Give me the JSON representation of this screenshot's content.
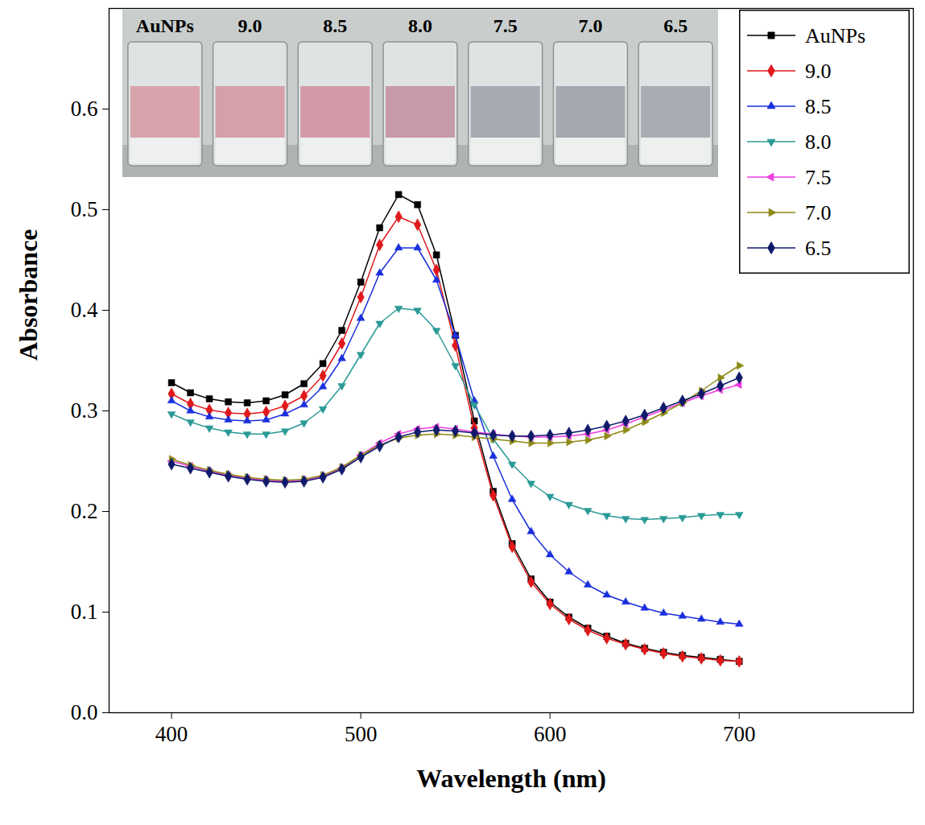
{
  "chart_data": {
    "type": "line",
    "x_label": "Wavelength (nm)",
    "y_label": "Absorbance",
    "x": [
      400,
      410,
      420,
      430,
      440,
      450,
      460,
      470,
      480,
      490,
      500,
      510,
      520,
      530,
      540,
      550,
      560,
      570,
      580,
      590,
      600,
      610,
      620,
      630,
      640,
      650,
      660,
      670,
      680,
      690,
      700
    ],
    "series": [
      {
        "name": "AuNPs",
        "color": "#000000",
        "marker": "square",
        "line_style": "solid",
        "values": [
          0.328,
          0.318,
          0.312,
          0.309,
          0.308,
          0.31,
          0.316,
          0.327,
          0.347,
          0.38,
          0.428,
          0.482,
          0.515,
          0.505,
          0.455,
          0.375,
          0.29,
          0.22,
          0.168,
          0.133,
          0.11,
          0.095,
          0.084,
          0.076,
          0.069,
          0.064,
          0.06,
          0.057,
          0.055,
          0.053,
          0.051
        ]
      },
      {
        "name": "9.0",
        "color": "#e0191b",
        "marker": "diamond",
        "line_style": "solid",
        "values": [
          0.317,
          0.307,
          0.301,
          0.298,
          0.297,
          0.299,
          0.305,
          0.315,
          0.335,
          0.367,
          0.413,
          0.465,
          0.493,
          0.485,
          0.44,
          0.365,
          0.283,
          0.216,
          0.165,
          0.13,
          0.108,
          0.093,
          0.082,
          0.074,
          0.068,
          0.063,
          0.059,
          0.056,
          0.054,
          0.052,
          0.051
        ]
      },
      {
        "name": "8.5",
        "color": "#1a2fdc",
        "marker": "triangle",
        "line_style": "solid",
        "values": [
          0.31,
          0.3,
          0.294,
          0.291,
          0.29,
          0.291,
          0.297,
          0.306,
          0.324,
          0.352,
          0.392,
          0.437,
          0.462,
          0.462,
          0.43,
          0.375,
          0.31,
          0.255,
          0.212,
          0.18,
          0.157,
          0.14,
          0.127,
          0.117,
          0.11,
          0.104,
          0.099,
          0.096,
          0.093,
          0.09,
          0.088
        ]
      },
      {
        "name": "8.0",
        "color": "#2a9a96",
        "marker": "triangle-down",
        "line_style": "solid",
        "values": [
          0.297,
          0.289,
          0.283,
          0.279,
          0.277,
          0.277,
          0.28,
          0.288,
          0.302,
          0.325,
          0.356,
          0.387,
          0.402,
          0.4,
          0.38,
          0.345,
          0.306,
          0.272,
          0.247,
          0.228,
          0.215,
          0.207,
          0.201,
          0.196,
          0.193,
          0.192,
          0.193,
          0.194,
          0.196,
          0.197,
          0.197
        ]
      },
      {
        "name": "7.5",
        "color": "#f03ce0",
        "marker": "triangle-left",
        "line_style": "solid",
        "values": [
          0.25,
          0.245,
          0.24,
          0.236,
          0.233,
          0.231,
          0.23,
          0.231,
          0.235,
          0.243,
          0.256,
          0.268,
          0.277,
          0.282,
          0.284,
          0.282,
          0.279,
          0.277,
          0.275,
          0.274,
          0.274,
          0.275,
          0.277,
          0.281,
          0.287,
          0.294,
          0.301,
          0.308,
          0.315,
          0.321,
          0.326
        ]
      },
      {
        "name": "7.0",
        "color": "#8e8a16",
        "marker": "triangle-right",
        "line_style": "solid",
        "values": [
          0.252,
          0.246,
          0.241,
          0.237,
          0.234,
          0.232,
          0.231,
          0.232,
          0.236,
          0.244,
          0.256,
          0.266,
          0.273,
          0.276,
          0.277,
          0.276,
          0.274,
          0.272,
          0.27,
          0.268,
          0.268,
          0.269,
          0.271,
          0.275,
          0.281,
          0.289,
          0.298,
          0.308,
          0.32,
          0.333,
          0.345
        ]
      },
      {
        "name": "6.5",
        "color": "#0f1a6b",
        "marker": "diamond",
        "line_style": "solid",
        "values": [
          0.247,
          0.243,
          0.239,
          0.235,
          0.232,
          0.23,
          0.229,
          0.23,
          0.234,
          0.242,
          0.254,
          0.265,
          0.274,
          0.279,
          0.281,
          0.28,
          0.278,
          0.276,
          0.275,
          0.275,
          0.276,
          0.278,
          0.281,
          0.285,
          0.29,
          0.296,
          0.303,
          0.31,
          0.317,
          0.325,
          0.333
        ]
      }
    ],
    "xlim": [
      367,
      792
    ],
    "ylim": [
      0,
      0.7
    ],
    "xticks": [
      400,
      500,
      600,
      700
    ],
    "yticks": [
      {
        "value": 0,
        "label": "0.0"
      },
      0.1,
      0.2,
      0.3,
      0.4,
      0.5,
      0.6
    ],
    "grid": false,
    "legend": "top-right",
    "inset": {
      "labels": [
        "AuNPs",
        "9.0",
        "8.5",
        "8.0",
        "7.5",
        "7.0",
        "6.5"
      ],
      "colors": [
        "#d9a3ab",
        "#d6a0a9",
        "#d499a6",
        "#c79aa8",
        "#a6abb3",
        "#a4a9b1",
        "#a8adb4"
      ]
    }
  }
}
